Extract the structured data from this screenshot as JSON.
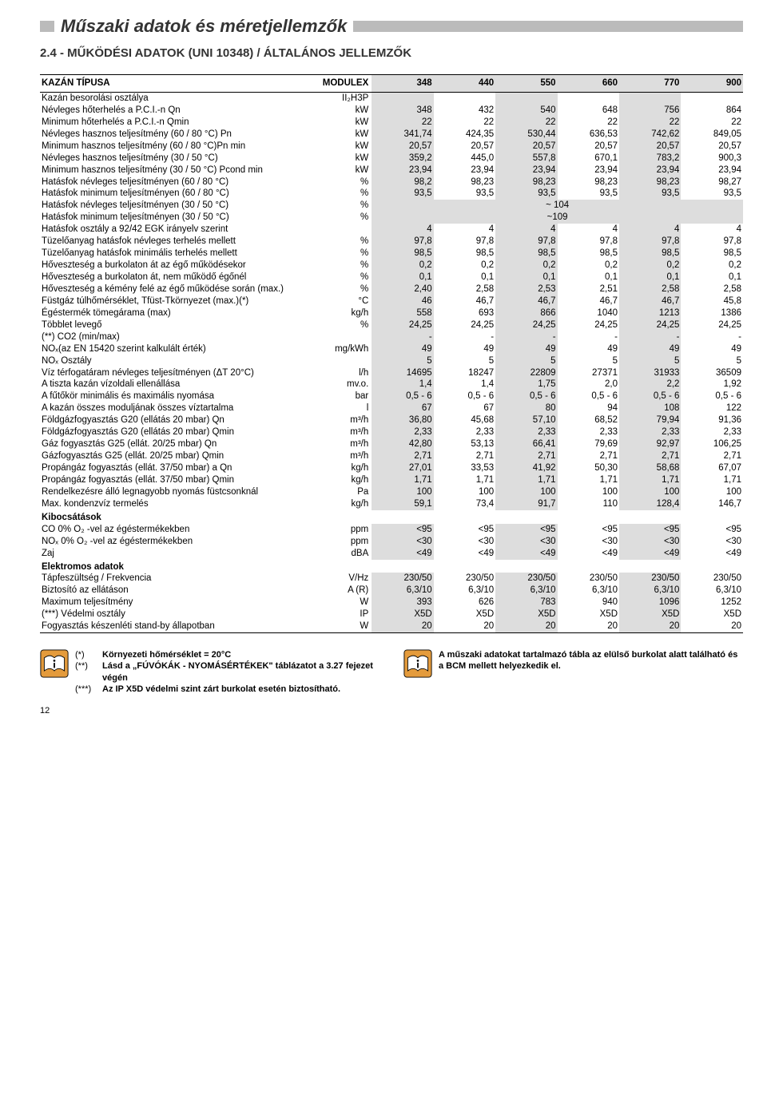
{
  "colors": {
    "grey_stripe": "#dddddd",
    "orange": "#e49b3c",
    "text": "#333333",
    "border": "#000000"
  },
  "header": {
    "title": "Műszaki adatok és méretjellemzők",
    "subtitle": "2.4 - MŰKÖDÉSI ADATOK (UNI 10348) / ÁLTALÁNOS JELLEMZŐK"
  },
  "table": {
    "head": {
      "label": "KAZÁN TÍPUSA",
      "unit_col": "MODULEX",
      "cols": [
        "348",
        "440",
        "550",
        "660",
        "770",
        "900"
      ]
    },
    "rows": [
      {
        "l": "Kazán besorolási osztálya",
        "u": "II₂H3P",
        "v": [
          "",
          "",
          "",
          "",
          "",
          ""
        ]
      },
      {
        "l": "Névleges hőterhelés a P.C.I.-n Qn",
        "u": "kW",
        "v": [
          "348",
          "432",
          "540",
          "648",
          "756",
          "864"
        ]
      },
      {
        "l": "Minimum hőterhelés a P.C.I.-n Qmin",
        "u": "kW",
        "v": [
          "22",
          "22",
          "22",
          "22",
          "22",
          "22"
        ]
      },
      {
        "l": "Névleges hasznos teljesítmény (60 / 80 °C) Pn",
        "u": "kW",
        "v": [
          "341,74",
          "424,35",
          "530,44",
          "636,53",
          "742,62",
          "849,05"
        ]
      },
      {
        "l": "Minimum hasznos teljesítmény (60 / 80 °C)Pn min",
        "u": "kW",
        "v": [
          "20,57",
          "20,57",
          "20,57",
          "20,57",
          "20,57",
          "20,57"
        ]
      },
      {
        "l": "Névleges hasznos teljesítmény (30 / 50 °C)",
        "u": "kW",
        "v": [
          "359,2",
          "445,0",
          "557,8",
          "670,1",
          "783,2",
          "900,3"
        ]
      },
      {
        "l": "Minimum hasznos teljesítmény (30 / 50 °C) Pcond min",
        "u": "kW",
        "v": [
          "23,94",
          "23,94",
          "23,94",
          "23,94",
          "23,94",
          "23,94"
        ]
      },
      {
        "l": "Hatásfok névleges teljesítményen (60 / 80 °C)",
        "u": "%",
        "v": [
          "98,2",
          "98,23",
          "98,23",
          "98,23",
          "98,23",
          "98,27"
        ]
      },
      {
        "l": "Hatásfok minimum teljesítményen (60 / 80 °C)",
        "u": "%",
        "v": [
          "93,5",
          "93,5",
          "93,5",
          "93,5",
          "93,5",
          "93,5"
        ]
      },
      {
        "l": "Hatásfok névleges teljesítményen (30 / 50 °C)",
        "u": "%",
        "center": "~ 104"
      },
      {
        "l": "Hatásfok minimum teljesítményen (30 / 50 °C)",
        "u": "%",
        "center": "~109"
      },
      {
        "l": "Hatásfok osztály a 92/42 EGK irányelv szerint",
        "u": "",
        "v": [
          "4",
          "4",
          "4",
          "4",
          "4",
          "4"
        ]
      },
      {
        "l": "Tüzelőanyag hatásfok névleges terhelés mellett",
        "u": "%",
        "v": [
          "97,8",
          "97,8",
          "97,8",
          "97,8",
          "97,8",
          "97,8"
        ]
      },
      {
        "l": "Tüzelőanyag hatásfok minimális terhelés mellett",
        "u": "%",
        "v": [
          "98,5",
          "98,5",
          "98,5",
          "98,5",
          "98,5",
          "98,5"
        ]
      },
      {
        "l": "Hőveszteség a burkolaton át az égő működésekor",
        "u": "%",
        "v": [
          "0,2",
          "0,2",
          "0,2",
          "0,2",
          "0,2",
          "0,2"
        ]
      },
      {
        "l": "Hőveszteség a burkolaton át, nem működő égőnél",
        "u": "%",
        "v": [
          "0,1",
          "0,1",
          "0,1",
          "0,1",
          "0,1",
          "0,1"
        ]
      },
      {
        "l": "Hőveszteség a kémény felé az égő működése során (max.)",
        "u": "%",
        "v": [
          "2,40",
          "2,58",
          "2,53",
          "2,51",
          "2,58",
          "2,58"
        ]
      },
      {
        "l": "Füstgáz túlhőmérséklet, Tfüst-Tkörnyezet (max.)(*)",
        "u": "°C",
        "v": [
          "46",
          "46,7",
          "46,7",
          "46,7",
          "46,7",
          "45,8"
        ]
      },
      {
        "l": "Égéstermék tömegárama (max)",
        "u": "kg/h",
        "v": [
          "558",
          "693",
          "866",
          "1040",
          "1213",
          "1386"
        ]
      },
      {
        "l": "Többlet levegő",
        "u": "%",
        "v": [
          "24,25",
          "24,25",
          "24,25",
          "24,25",
          "24,25",
          "24,25"
        ]
      },
      {
        "l": "(**) CO2 (min/max)",
        "u": "",
        "v": [
          "-",
          "-",
          "-",
          "-",
          "-",
          "-"
        ]
      },
      {
        "l": "NOₓ(az EN 15420 szerint kalkulált érték)",
        "u": "mg/kWh",
        "v": [
          "49",
          "49",
          "49",
          "49",
          "49",
          "49"
        ]
      },
      {
        "l": "NOₓ Osztály",
        "u": "",
        "v": [
          "5",
          "5",
          "5",
          "5",
          "5",
          "5"
        ]
      },
      {
        "l": "Víz térfogatáram névleges teljesítményen (ΔT 20°C)",
        "u": "l/h",
        "v": [
          "14695",
          "18247",
          "22809",
          "27371",
          "31933",
          "36509"
        ]
      },
      {
        "l": "A tiszta kazán vízoldali ellenállása",
        "u": "mv.o.",
        "v": [
          "1,4",
          "1,4",
          "1,75",
          "2,0",
          "2,2",
          "1,92"
        ]
      },
      {
        "l": "A fűtőkör minimális és maximális nyomása",
        "u": "bar",
        "v": [
          "0,5 - 6",
          "0,5 - 6",
          "0,5 - 6",
          "0,5 - 6",
          "0,5 - 6",
          "0,5 - 6"
        ]
      },
      {
        "l": "A kazán összes moduljának összes víztartalma",
        "u": "l",
        "v": [
          "67",
          "67",
          "80",
          "94",
          "108",
          "122"
        ]
      },
      {
        "l": "Földgázfogyasztás G20 (ellátás 20 mbar) Qn",
        "u": "m³/h",
        "v": [
          "36,80",
          "45,68",
          "57,10",
          "68,52",
          "79,94",
          "91,36"
        ]
      },
      {
        "l": "Földgázfogyasztás G20 (ellátás 20 mbar) Qmin",
        "u": "m³/h",
        "v": [
          "2,33",
          "2,33",
          "2,33",
          "2,33",
          "2,33",
          "2,33"
        ]
      },
      {
        "l": "Gáz fogyasztás G25 (ellát. 20/25 mbar) Qn",
        "u": "m³/h",
        "v": [
          "42,80",
          "53,13",
          "66,41",
          "79,69",
          "92,97",
          "106,25"
        ]
      },
      {
        "l": "Gázfogyasztás G25 (ellát. 20/25 mbar) Qmin",
        "u": "m³/h",
        "v": [
          "2,71",
          "2,71",
          "2,71",
          "2,71",
          "2,71",
          "2,71"
        ]
      },
      {
        "l": "Propángáz fogyasztás (ellát. 37/50 mbar) a Qn",
        "u": "kg/h",
        "v": [
          "27,01",
          "33,53",
          "41,92",
          "50,30",
          "58,68",
          "67,07"
        ]
      },
      {
        "l": "Propángáz fogyasztás (ellát. 37/50 mbar) Qmin",
        "u": "kg/h",
        "v": [
          "1,71",
          "1,71",
          "1,71",
          "1,71",
          "1,71",
          "1,71"
        ]
      },
      {
        "l": "Rendelkezésre álló legnagyobb nyomás füstcsonknál",
        "u": "Pa",
        "v": [
          "100",
          "100",
          "100",
          "100",
          "100",
          "100"
        ]
      },
      {
        "l": "Max. kondenzvíz termelés",
        "u": "kg/h",
        "v": [
          "59,1",
          "73,4",
          "91,7",
          "110",
          "128,4",
          "146,7"
        ]
      },
      {
        "section": "Kibocsátások"
      },
      {
        "l": "CO 0% O₂ -vel az égéstermékekben",
        "u": "ppm",
        "v": [
          "<95",
          "<95",
          "<95",
          "<95",
          "<95",
          "<95"
        ]
      },
      {
        "l": "NOₓ 0% O₂ -vel az égéstermékekben",
        "u": "ppm",
        "v": [
          "<30",
          "<30",
          "<30",
          "<30",
          "<30",
          "<30"
        ]
      },
      {
        "l": "Zaj",
        "u": "dBA",
        "v": [
          "<49",
          "<49",
          "<49",
          "<49",
          "<49",
          "<49"
        ]
      },
      {
        "section": "Elektromos adatok"
      },
      {
        "l": "Tápfeszültség / Frekvencia",
        "u": "V/Hz",
        "v": [
          "230/50",
          "230/50",
          "230/50",
          "230/50",
          "230/50",
          "230/50"
        ]
      },
      {
        "l": " Biztosító az ellátáson",
        "u": "A (R)",
        "v": [
          "6,3/10",
          "6,3/10",
          "6,3/10",
          "6,3/10",
          "6,3/10",
          "6,3/10"
        ]
      },
      {
        "l": "Maximum teljesítmény",
        "u": "W",
        "v": [
          "393",
          "626",
          "783",
          "940",
          "1096",
          "1252"
        ]
      },
      {
        "l": " (***) Védelmi osztály",
        "u": "IP",
        "v": [
          "X5D",
          "X5D",
          "X5D",
          "X5D",
          "X5D",
          "X5D"
        ]
      },
      {
        "l": "Fogyasztás készenléti stand-by állapotban",
        "u": "W",
        "v": [
          "20",
          "20",
          "20",
          "20",
          "20",
          "20"
        ]
      }
    ]
  },
  "footer": {
    "left_notes": [
      {
        "k": "(*)",
        "t": "Környezeti hőmérséklet = 20°C"
      },
      {
        "k": "(**)",
        "t": "Lásd a „FÚVÓKÁK - NYOMÁSÉRTÉKEK\" táblázatot a 3.27 fejezet végén"
      },
      {
        "k": "(***)",
        "t": "Az IP X5D védelmi szint zárt burkolat esetén biztosítható."
      }
    ],
    "right_note": "A műszaki adatokat tartalmazó tábla az elülső burkolat alatt található és a BCM mellett helyezkedik el."
  },
  "page_number": "12"
}
